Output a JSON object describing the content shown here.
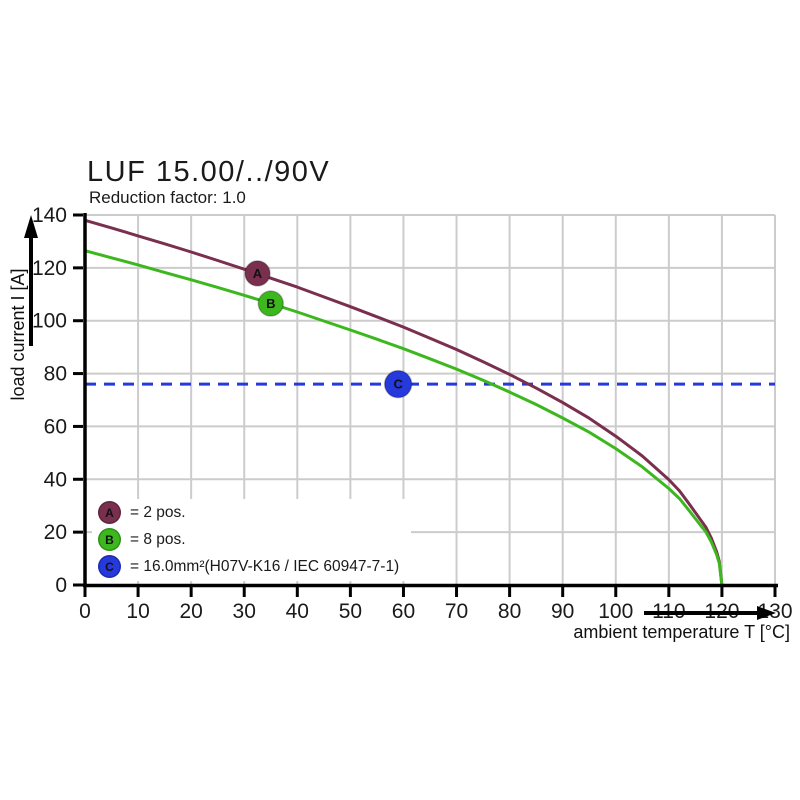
{
  "title": "LUF 15.00/../90V",
  "subtitle": "Reduction factor: 1.0",
  "chart_data": {
    "type": "line",
    "title": "LUF 15.00/../90V",
    "subtitle": "Reduction factor: 1.0",
    "xlabel": "ambient temperature T [°C]",
    "ylabel": "load current I [A]",
    "x_range": [
      0,
      130
    ],
    "y_range": [
      0,
      140
    ],
    "x_ticks": [
      0,
      10,
      20,
      30,
      40,
      50,
      60,
      70,
      80,
      90,
      100,
      110,
      120,
      130
    ],
    "y_ticks": [
      0,
      20,
      40,
      60,
      80,
      100,
      120,
      140
    ],
    "grid": true,
    "grid_color": "#cccccc",
    "axis_color": "#000000",
    "series": [
      {
        "id": "A",
        "name": "2 pos.",
        "color": "#7A2F4E",
        "marker_at": [
          32.5,
          117.9
        ],
        "points": [
          [
            0,
            138
          ],
          [
            5,
            135.1
          ],
          [
            10,
            132.1
          ],
          [
            15,
            129.1
          ],
          [
            20,
            126.0
          ],
          [
            25,
            122.8
          ],
          [
            30,
            119.5
          ],
          [
            35,
            116.1
          ],
          [
            40,
            112.7
          ],
          [
            45,
            109.0
          ],
          [
            50,
            105.3
          ],
          [
            55,
            101.5
          ],
          [
            60,
            97.6
          ],
          [
            65,
            93.4
          ],
          [
            70,
            89.1
          ],
          [
            75,
            84.5
          ],
          [
            80,
            79.7
          ],
          [
            85,
            74.5
          ],
          [
            90,
            69.0
          ],
          [
            95,
            63.1
          ],
          [
            100,
            56.3
          ],
          [
            105,
            48.8
          ],
          [
            110,
            39.9
          ],
          [
            112,
            35.6
          ],
          [
            114,
            30.2
          ],
          [
            116,
            24.6
          ],
          [
            117,
            21.8
          ],
          [
            118,
            17.8
          ],
          [
            119,
            12.6
          ],
          [
            119.5,
            8.9
          ],
          [
            120,
            0
          ]
        ]
      },
      {
        "id": "B",
        "name": "8 pos.",
        "color": "#3CB81E",
        "marker_at": [
          35,
          106.5
        ],
        "points": [
          [
            0,
            126.5
          ],
          [
            5,
            123.8
          ],
          [
            10,
            121.1
          ],
          [
            15,
            118.3
          ],
          [
            20,
            115.5
          ],
          [
            25,
            112.6
          ],
          [
            30,
            109.6
          ],
          [
            35,
            106.5
          ],
          [
            40,
            103.3
          ],
          [
            45,
            99.9
          ],
          [
            50,
            96.5
          ],
          [
            55,
            93.0
          ],
          [
            60,
            89.4
          ],
          [
            65,
            85.6
          ],
          [
            70,
            81.7
          ],
          [
            75,
            77.5
          ],
          [
            80,
            73.0
          ],
          [
            85,
            68.3
          ],
          [
            90,
            63.2
          ],
          [
            95,
            57.8
          ],
          [
            100,
            51.6
          ],
          [
            105,
            44.7
          ],
          [
            110,
            36.5
          ],
          [
            112,
            32.7
          ],
          [
            114,
            27.7
          ],
          [
            116,
            22.5
          ],
          [
            117,
            20.0
          ],
          [
            118,
            16.3
          ],
          [
            119,
            11.5
          ],
          [
            119.5,
            8.2
          ],
          [
            120,
            0
          ]
        ]
      }
    ],
    "reference_line": {
      "id": "C",
      "label": "16.0mm²(H07V-K16 / IEC 60947-7-1)",
      "value": 76,
      "style": "dashed",
      "color": "#2639DC",
      "marker_at": [
        59,
        76
      ]
    },
    "legend_position": "bottom-left-inside"
  },
  "legend": {
    "items": [
      {
        "id": "A",
        "color": "#7A2F4E",
        "label": "= 2 pos."
      },
      {
        "id": "B",
        "color": "#3CB81E",
        "label": "= 8 pos."
      },
      {
        "id": "C",
        "color": "#2639DC",
        "label": "= 16.0mm²(H07V-K16 / IEC 60947-7-1)"
      }
    ]
  }
}
